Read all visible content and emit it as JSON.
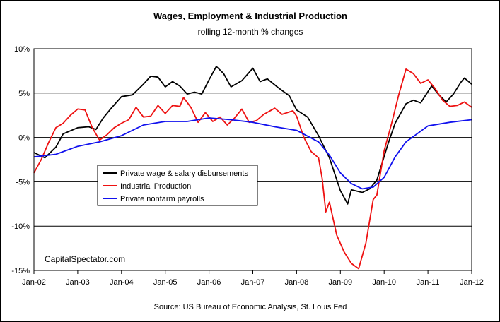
{
  "chart_data": {
    "type": "line",
    "title": "Wages, Employment & Industrial Production",
    "subtitle": "rolling 12-month % changes",
    "watermark": "CapitalSpectator.com",
    "source": "Source: US Bureau of Economic Analysis, St. Louis Fed",
    "x_start": "Jan-02",
    "x_end": "Jan-12",
    "x_ticks": [
      "Jan-02",
      "Jan-03",
      "Jan-04",
      "Jan-05",
      "Jan-06",
      "Jan-07",
      "Jan-08",
      "Jan-09",
      "Jan-10",
      "Jan-11",
      "Jan-12"
    ],
    "ylim": [
      -15,
      10
    ],
    "y_ticks": [
      10,
      5,
      0,
      -5,
      -10,
      -15
    ],
    "y_tick_labels": [
      "10%",
      "5%",
      "0%",
      "-5%",
      "-10%",
      "-15%"
    ],
    "gridlines": true,
    "legend_position": "center-left",
    "series": [
      {
        "name": "Private wage & salary disbursements",
        "color": "#000000",
        "points": [
          [
            "Jan-02",
            -1.7
          ],
          [
            "Apr-02",
            -2.3
          ],
          [
            "Jul-02",
            -1.1
          ],
          [
            "Sep-02",
            0.4
          ],
          [
            "Jan-03",
            1.1
          ],
          [
            "Apr-03",
            1.2
          ],
          [
            "Jun-03",
            0.9
          ],
          [
            "Aug-03",
            2.2
          ],
          [
            "Oct-03",
            3.2
          ],
          [
            "Jan-04",
            4.6
          ],
          [
            "Apr-04",
            4.8
          ],
          [
            "Jul-04",
            6.0
          ],
          [
            "Sep-04",
            6.9
          ],
          [
            "Nov-04",
            6.8
          ],
          [
            "Jan-05",
            5.7
          ],
          [
            "Mar-05",
            6.3
          ],
          [
            "May-05",
            5.8
          ],
          [
            "Jul-05",
            4.9
          ],
          [
            "Sep-05",
            5.1
          ],
          [
            "Nov-05",
            4.9
          ],
          [
            "Jan-06",
            6.5
          ],
          [
            "Mar-06",
            8.0
          ],
          [
            "May-06",
            7.2
          ],
          [
            "Jul-06",
            5.7
          ],
          [
            "Oct-06",
            6.4
          ],
          [
            "Jan-07",
            7.8
          ],
          [
            "Mar-07",
            6.3
          ],
          [
            "May-07",
            6.6
          ],
          [
            "Aug-07",
            5.6
          ],
          [
            "Nov-07",
            4.7
          ],
          [
            "Jan-08",
            3.1
          ],
          [
            "Apr-08",
            2.3
          ],
          [
            "Jul-08",
            0.2
          ],
          [
            "Oct-08",
            -2.3
          ],
          [
            "Jan-09",
            -6.0
          ],
          [
            "Mar-09",
            -7.5
          ],
          [
            "Apr-09",
            -5.9
          ],
          [
            "Jul-09",
            -6.2
          ],
          [
            "Sep-09",
            -5.8
          ],
          [
            "Nov-09",
            -4.8
          ],
          [
            "Feb-10",
            -0.8
          ],
          [
            "Apr-10",
            1.6
          ],
          [
            "Jul-10",
            3.8
          ],
          [
            "Sep-10",
            4.2
          ],
          [
            "Nov-10",
            3.9
          ],
          [
            "Feb-11",
            5.8
          ],
          [
            "Apr-11",
            4.8
          ],
          [
            "Jun-11",
            4.0
          ],
          [
            "Aug-11",
            4.9
          ],
          [
            "Oct-11",
            6.2
          ],
          [
            "Nov-11",
            6.7
          ],
          [
            "Jan-12",
            6.0
          ]
        ]
      },
      {
        "name": "Industrial Production",
        "color": "#ee1111",
        "points": [
          [
            "Jan-02",
            -4.0
          ],
          [
            "Mar-02",
            -2.5
          ],
          [
            "May-02",
            -0.6
          ],
          [
            "Jul-02",
            1.1
          ],
          [
            "Sep-02",
            1.6
          ],
          [
            "Nov-02",
            2.5
          ],
          [
            "Jan-03",
            3.2
          ],
          [
            "Mar-03",
            3.1
          ],
          [
            "May-03",
            1.1
          ],
          [
            "Jul-03",
            -0.3
          ],
          [
            "Sep-03",
            0.3
          ],
          [
            "Nov-03",
            1.1
          ],
          [
            "Jan-04",
            1.6
          ],
          [
            "Mar-04",
            2.0
          ],
          [
            "May-04",
            3.4
          ],
          [
            "Jul-04",
            2.3
          ],
          [
            "Sep-04",
            2.4
          ],
          [
            "Nov-04",
            3.6
          ],
          [
            "Jan-05",
            2.7
          ],
          [
            "Mar-05",
            3.6
          ],
          [
            "May-05",
            3.5
          ],
          [
            "Jun-05",
            4.5
          ],
          [
            "Aug-05",
            3.4
          ],
          [
            "Oct-05",
            1.7
          ],
          [
            "Dec-05",
            2.8
          ],
          [
            "Feb-06",
            1.8
          ],
          [
            "Apr-06",
            2.3
          ],
          [
            "Jun-06",
            1.4
          ],
          [
            "Aug-06",
            2.2
          ],
          [
            "Oct-06",
            3.2
          ],
          [
            "Dec-06",
            1.7
          ],
          [
            "Feb-07",
            1.9
          ],
          [
            "Apr-07",
            2.6
          ],
          [
            "Jul-07",
            3.3
          ],
          [
            "Sep-07",
            2.6
          ],
          [
            "Dec-07",
            3.0
          ],
          [
            "Jan-08",
            2.4
          ],
          [
            "Mar-08",
            0.0
          ],
          [
            "May-08",
            -1.6
          ],
          [
            "Jul-08",
            -2.3
          ],
          [
            "Aug-08",
            -4.6
          ],
          [
            "Sep-08",
            -8.4
          ],
          [
            "Oct-08",
            -7.3
          ],
          [
            "Dec-08",
            -11.0
          ],
          [
            "Feb-09",
            -12.9
          ],
          [
            "Apr-09",
            -14.2
          ],
          [
            "Jun-09",
            -14.8
          ],
          [
            "Aug-09",
            -11.9
          ],
          [
            "Oct-09",
            -7.0
          ],
          [
            "Nov-09",
            -6.5
          ],
          [
            "Jan-10",
            -1.5
          ],
          [
            "Mar-10",
            1.5
          ],
          [
            "May-10",
            4.8
          ],
          [
            "Jul-10",
            7.7
          ],
          [
            "Sep-10",
            7.2
          ],
          [
            "Nov-10",
            6.1
          ],
          [
            "Jan-11",
            6.5
          ],
          [
            "Mar-11",
            5.5
          ],
          [
            "May-11",
            4.2
          ],
          [
            "Jul-11",
            3.5
          ],
          [
            "Sep-11",
            3.6
          ],
          [
            "Nov-11",
            4.0
          ],
          [
            "Jan-12",
            3.4
          ]
        ]
      },
      {
        "name": "Private nonfarm payrolls",
        "color": "#1111ee",
        "points": [
          [
            "Jan-02",
            -2.2
          ],
          [
            "Jul-02",
            -1.9
          ],
          [
            "Jan-03",
            -1.0
          ],
          [
            "Jul-03",
            -0.5
          ],
          [
            "Jan-04",
            0.2
          ],
          [
            "Jul-04",
            1.4
          ],
          [
            "Jan-05",
            1.8
          ],
          [
            "Jul-05",
            1.8
          ],
          [
            "Jan-06",
            2.2
          ],
          [
            "Jul-06",
            2.0
          ],
          [
            "Jan-07",
            1.7
          ],
          [
            "Jul-07",
            1.2
          ],
          [
            "Jan-08",
            0.8
          ],
          [
            "Jul-08",
            -0.5
          ],
          [
            "Oct-08",
            -2.0
          ],
          [
            "Jan-09",
            -4.0
          ],
          [
            "Apr-09",
            -5.2
          ],
          [
            "Jul-09",
            -5.8
          ],
          [
            "Oct-09",
            -5.6
          ],
          [
            "Jan-10",
            -4.5
          ],
          [
            "Apr-10",
            -2.2
          ],
          [
            "Jul-10",
            -0.5
          ],
          [
            "Jan-11",
            1.3
          ],
          [
            "Jul-11",
            1.7
          ],
          [
            "Jan-12",
            2.0
          ]
        ]
      }
    ]
  }
}
